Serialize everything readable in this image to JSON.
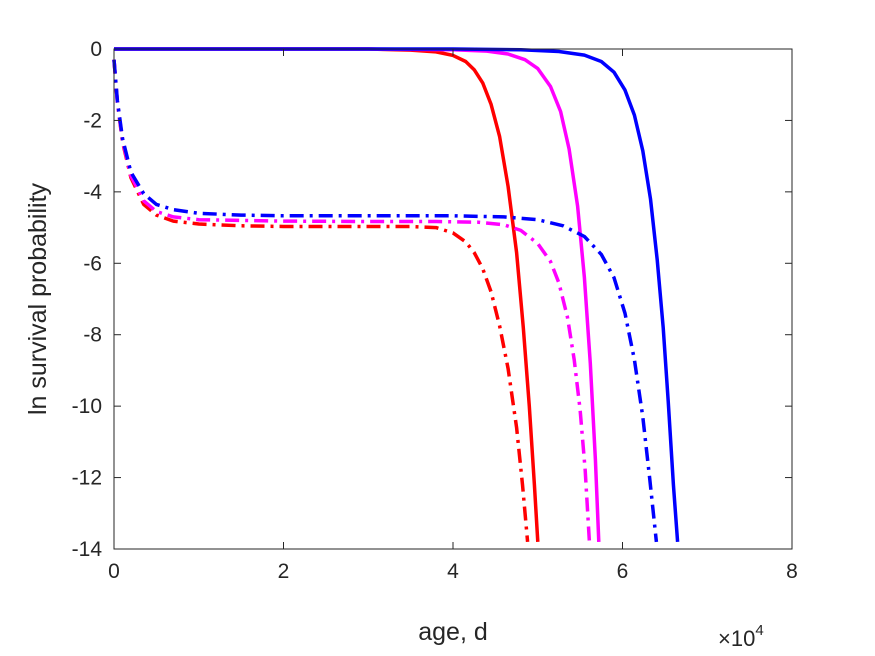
{
  "chart_data": {
    "type": "line",
    "xlabel": "age, d",
    "ylabel": "ln survival probability",
    "x_multiplier": {
      "base": "×10",
      "exponent": "4"
    },
    "xlim": [
      0,
      80000
    ],
    "ylim": [
      -14,
      0
    ],
    "xticks": [
      0,
      20000,
      40000,
      60000,
      80000
    ],
    "xtick_labels": [
      "0",
      "2",
      "4",
      "6",
      "8"
    ],
    "yticks": [
      0,
      -2,
      -4,
      -6,
      -8,
      -10,
      -12,
      -14
    ],
    "ytick_labels": [
      "0",
      "-2",
      "-4",
      "-6",
      "-8",
      "-10",
      "-12",
      "-14"
    ],
    "grid": false,
    "series": [
      {
        "color": "#ff0000",
        "style": "solid",
        "x": [
          0,
          10000,
          20000,
          30000,
          35000,
          38000,
          40000,
          41500,
          42500,
          43500,
          44500,
          45500,
          46500,
          47500,
          48300,
          49000,
          49600,
          50000
        ],
        "y": [
          0,
          0,
          0,
          0,
          -0.03,
          -0.08,
          -0.18,
          -0.35,
          -0.58,
          -0.95,
          -1.55,
          -2.45,
          -3.85,
          -5.7,
          -7.8,
          -10.0,
          -12.2,
          -13.8
        ]
      },
      {
        "color": "#ff00ff",
        "style": "solid",
        "x": [
          0,
          10000,
          20000,
          30000,
          40000,
          44000,
          46500,
          48500,
          50000,
          51500,
          52700,
          53700,
          54700,
          55500,
          56200,
          56800,
          57200
        ],
        "y": [
          0,
          0,
          0,
          0,
          -0.02,
          -0.06,
          -0.14,
          -0.3,
          -0.55,
          -1.05,
          -1.75,
          -2.8,
          -4.4,
          -6.4,
          -8.8,
          -11.5,
          -13.8
        ]
      },
      {
        "color": "#0000ff",
        "style": "solid",
        "x": [
          0,
          10000,
          20000,
          30000,
          40000,
          48000,
          52500,
          55500,
          57500,
          59000,
          60300,
          61400,
          62400,
          63300,
          64100,
          64800,
          65400,
          66000,
          66500
        ],
        "y": [
          0,
          0,
          0,
          0,
          0,
          -0.02,
          -0.07,
          -0.17,
          -0.35,
          -0.65,
          -1.15,
          -1.85,
          -2.85,
          -4.2,
          -5.9,
          -7.8,
          -9.9,
          -12.2,
          -13.8
        ]
      },
      {
        "color": "#ff0000",
        "style": "dashdot",
        "x": [
          0,
          400,
          1000,
          2000,
          3500,
          5000,
          7000,
          10000,
          15000,
          20000,
          30000,
          35000,
          38000,
          40000,
          41500,
          42500,
          43500,
          44500,
          45500,
          46500,
          47500,
          48200,
          48800
        ],
        "y": [
          -0.3,
          -1.5,
          -2.6,
          -3.6,
          -4.35,
          -4.65,
          -4.82,
          -4.9,
          -4.95,
          -4.97,
          -4.97,
          -4.97,
          -5.0,
          -5.15,
          -5.4,
          -5.7,
          -6.15,
          -6.8,
          -7.75,
          -8.95,
          -10.6,
          -12.2,
          -13.8
        ]
      },
      {
        "color": "#ff00ff",
        "style": "dashdot",
        "x": [
          0,
          400,
          1000,
          2000,
          3500,
          5000,
          7000,
          10000,
          15000,
          20000,
          30000,
          38000,
          43000,
          46000,
          48000,
          50000,
          51500,
          52500,
          53500,
          54300,
          55000,
          55600,
          56100
        ],
        "y": [
          -0.3,
          -1.5,
          -2.55,
          -3.55,
          -4.25,
          -4.55,
          -4.7,
          -4.78,
          -4.8,
          -4.82,
          -4.83,
          -4.83,
          -4.85,
          -4.92,
          -5.08,
          -5.45,
          -5.95,
          -6.55,
          -7.5,
          -8.7,
          -10.1,
          -11.8,
          -13.8
        ]
      },
      {
        "color": "#0000ff",
        "style": "dashdot",
        "x": [
          0,
          400,
          1000,
          2000,
          3500,
          5000,
          7000,
          10000,
          15000,
          20000,
          30000,
          40000,
          46000,
          50000,
          53000,
          55500,
          57500,
          59000,
          60300,
          61400,
          62400,
          63200,
          64000
        ],
        "y": [
          -0.3,
          -1.45,
          -2.5,
          -3.45,
          -4.05,
          -4.35,
          -4.5,
          -4.6,
          -4.65,
          -4.67,
          -4.67,
          -4.67,
          -4.7,
          -4.78,
          -4.95,
          -5.25,
          -5.75,
          -6.4,
          -7.4,
          -8.7,
          -10.3,
          -12.0,
          -13.8
        ]
      }
    ]
  }
}
